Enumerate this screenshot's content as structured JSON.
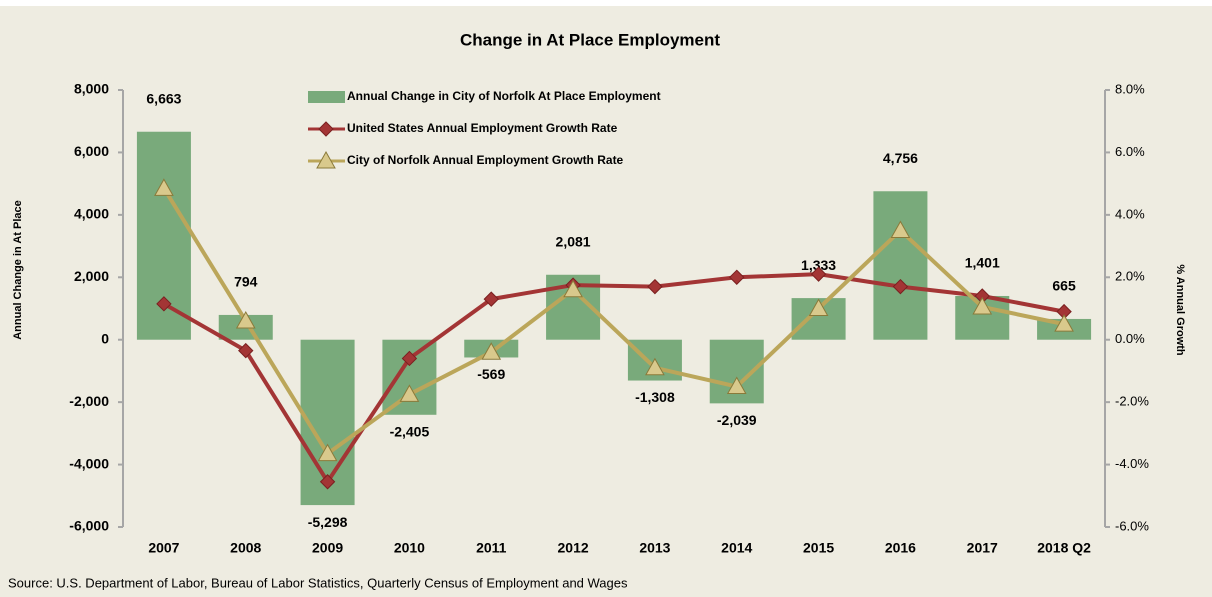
{
  "chart_data": {
    "type": "bar-line",
    "title": "Change in At Place Employment",
    "y_label": "Annual Change in At Place",
    "y2_label": "% Annual Growth",
    "source": "Source: U.S. Department of Labor, Bureau of Labor Statistics, Quarterly Census of Employment and Wages",
    "categories": [
      "2007",
      "2008",
      "2009",
      "2010",
      "2011",
      "2012",
      "2013",
      "2014",
      "2015",
      "2016",
      "2017",
      "2018 Q2"
    ],
    "ylim": [
      -6000,
      8000
    ],
    "yticks": [
      {
        "value": -6000,
        "label": "-6,000"
      },
      {
        "value": -4000,
        "label": "-4,000"
      },
      {
        "value": -2000,
        "label": "-2,000"
      },
      0,
      {
        "value": 2000,
        "label": "2,000"
      },
      {
        "value": 4000,
        "label": "4,000"
      },
      {
        "value": 6000,
        "label": "6,000"
      },
      {
        "value": 8000,
        "label": "8,000"
      }
    ],
    "y2lim": [
      -6,
      8
    ],
    "y2ticks": [
      {
        "value": -6,
        "label": "-6.0%"
      },
      {
        "value": -4,
        "label": "-4.0%"
      },
      {
        "value": -2,
        "label": "-2.0%"
      },
      {
        "value": 0,
        "label": "0.0%"
      },
      {
        "value": 2,
        "label": "2.0%"
      },
      {
        "value": 4,
        "label": "4.0%"
      },
      {
        "value": 6,
        "label": "6.0%"
      },
      {
        "value": 8,
        "label": "8.0%"
      }
    ],
    "series": [
      {
        "name": "Annual Change in City of Norfolk At Place Employment",
        "type": "bar",
        "color": "#79aa7b",
        "values": [
          6663,
          794,
          -5298,
          -2405,
          -569,
          2081,
          -1308,
          -2039,
          1333,
          4756,
          1401,
          665
        ],
        "value_labels": [
          "6,663",
          "794",
          "-5,298",
          "-2,405",
          "-569",
          "2,081",
          "-1,308",
          "-2,039",
          "1,333",
          "4,756",
          "1,401",
          "665"
        ]
      },
      {
        "name": "United States Annual Employment Growth Rate",
        "type": "line",
        "axis": "y2",
        "color": "#a33535",
        "marker": "diamond",
        "values": [
          1.15,
          -0.35,
          -4.55,
          -0.6,
          1.3,
          1.75,
          1.7,
          2.0,
          2.1,
          1.7,
          1.4,
          0.9
        ]
      },
      {
        "name": "City of Norfolk Annual Employment Growth Rate",
        "type": "line",
        "axis": "y2",
        "color": "#bba65a",
        "marker": "triangle",
        "values": [
          4.85,
          0.6,
          -3.65,
          -1.75,
          -0.4,
          1.6,
          -0.9,
          -1.5,
          1.0,
          3.5,
          1.05,
          0.5
        ]
      }
    ]
  }
}
